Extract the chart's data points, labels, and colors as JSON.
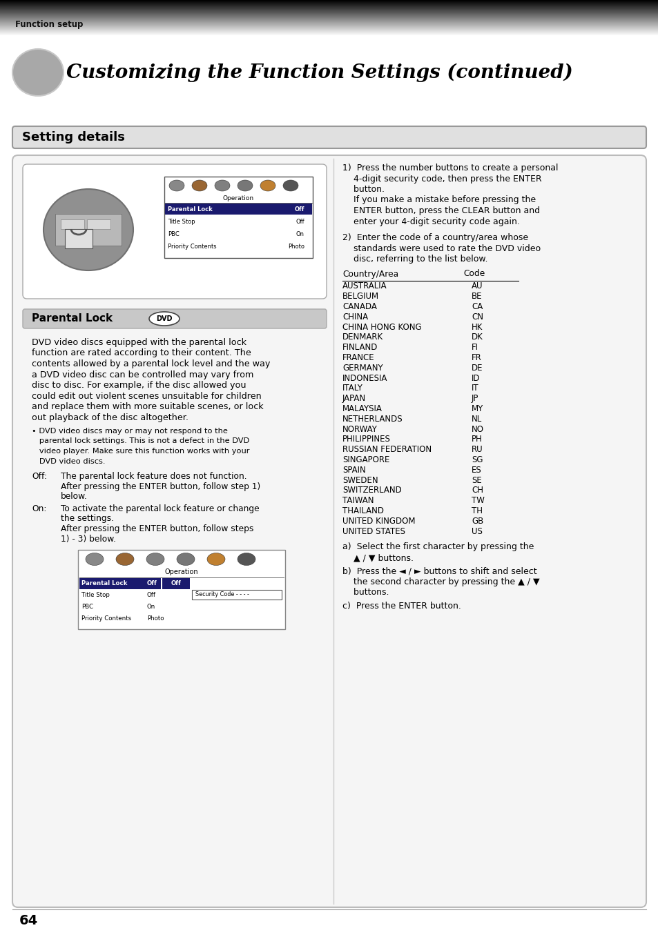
{
  "header_text": "Function setup",
  "title": "Customizing the Function Settings (continued)",
  "section_title": "Setting details",
  "parental_lock_heading": "Parental Lock",
  "parental_lock_dvd_label": "DVD",
  "body_lines": [
    "DVD video discs equipped with the parental lock",
    "function are rated according to their content. The",
    "contents allowed by a parental lock level and the way",
    "a DVD video disc can be controlled may vary from",
    "disc to disc. For example, if the disc allowed you",
    "could edit out violent scenes unsuitable for children",
    "and replace them with more suitable scenes, or lock",
    "out playback of the disc altogether."
  ],
  "bullet_lines": [
    "• DVD video discs may or may not respond to the",
    "   parental lock settings. This is not a defect in the DVD",
    "   video player. Make sure this function works with your",
    "   DVD video discs."
  ],
  "off_lines": [
    "Off:    The parental lock feature does not function.",
    "        After pressing the ENTER button, follow step 1)",
    "        below."
  ],
  "on_lines": [
    "On:    To activate the parental lock feature or change",
    "        the settings.",
    "        After pressing the ENTER button, follow steps",
    "        1) - 3) below."
  ],
  "step1_lines": [
    "1)  Press the number buttons to create a personal",
    "    4-digit security code, then press the ENTER",
    "    button.",
    "    If you make a mistake before pressing the",
    "    ENTER button, press the CLEAR button and",
    "    enter your 4-digit security code again."
  ],
  "step2_lines": [
    "2)  Enter the code of a country/area whose",
    "    standards were used to rate the DVD video",
    "    disc, referring to the list below."
  ],
  "country_header": [
    "Country/Area",
    "Code"
  ],
  "countries": [
    [
      "AUSTRALIA",
      "AU"
    ],
    [
      "BELGIUM",
      "BE"
    ],
    [
      "CANADA",
      "CA"
    ],
    [
      "CHINA",
      "CN"
    ],
    [
      "CHINA HONG KONG",
      "HK"
    ],
    [
      "DENMARK",
      "DK"
    ],
    [
      "FINLAND",
      "FI"
    ],
    [
      "FRANCE",
      "FR"
    ],
    [
      "GERMANY",
      "DE"
    ],
    [
      "INDONESIA",
      "ID"
    ],
    [
      "ITALY",
      "IT"
    ],
    [
      "JAPAN",
      "JP"
    ],
    [
      "MALAYSIA",
      "MY"
    ],
    [
      "NETHERLANDS",
      "NL"
    ],
    [
      "NORWAY",
      "NO"
    ],
    [
      "PHILIPPINES",
      "PH"
    ],
    [
      "RUSSIAN FEDERATION",
      "RU"
    ],
    [
      "SINGAPORE",
      "SG"
    ],
    [
      "SPAIN",
      "ES"
    ],
    [
      "SWEDEN",
      "SE"
    ],
    [
      "SWITZERLAND",
      "CH"
    ],
    [
      "TAIWAN",
      "TW"
    ],
    [
      "THAILAND",
      "TH"
    ],
    [
      "UNITED KINGDOM",
      "GB"
    ],
    [
      "UNITED STATES",
      "US"
    ]
  ],
  "step_a_lines": [
    "a)  Select the first character by pressing the",
    "    ▲ / ▼ buttons."
  ],
  "step_b_lines": [
    "b)  Press the ◄ / ► buttons to shift and select",
    "    the second character by pressing the ▲ / ▼",
    "    buttons."
  ],
  "step_c_lines": [
    "c)  Press the ENTER button."
  ],
  "page_number": "64",
  "menu_items": [
    "Parental Lock",
    "Title Stop",
    "PBC",
    "Priority Contents"
  ],
  "menu_values_1": [
    "Off",
    "Off",
    "On",
    "Photo"
  ],
  "bg_color": "#ffffff"
}
